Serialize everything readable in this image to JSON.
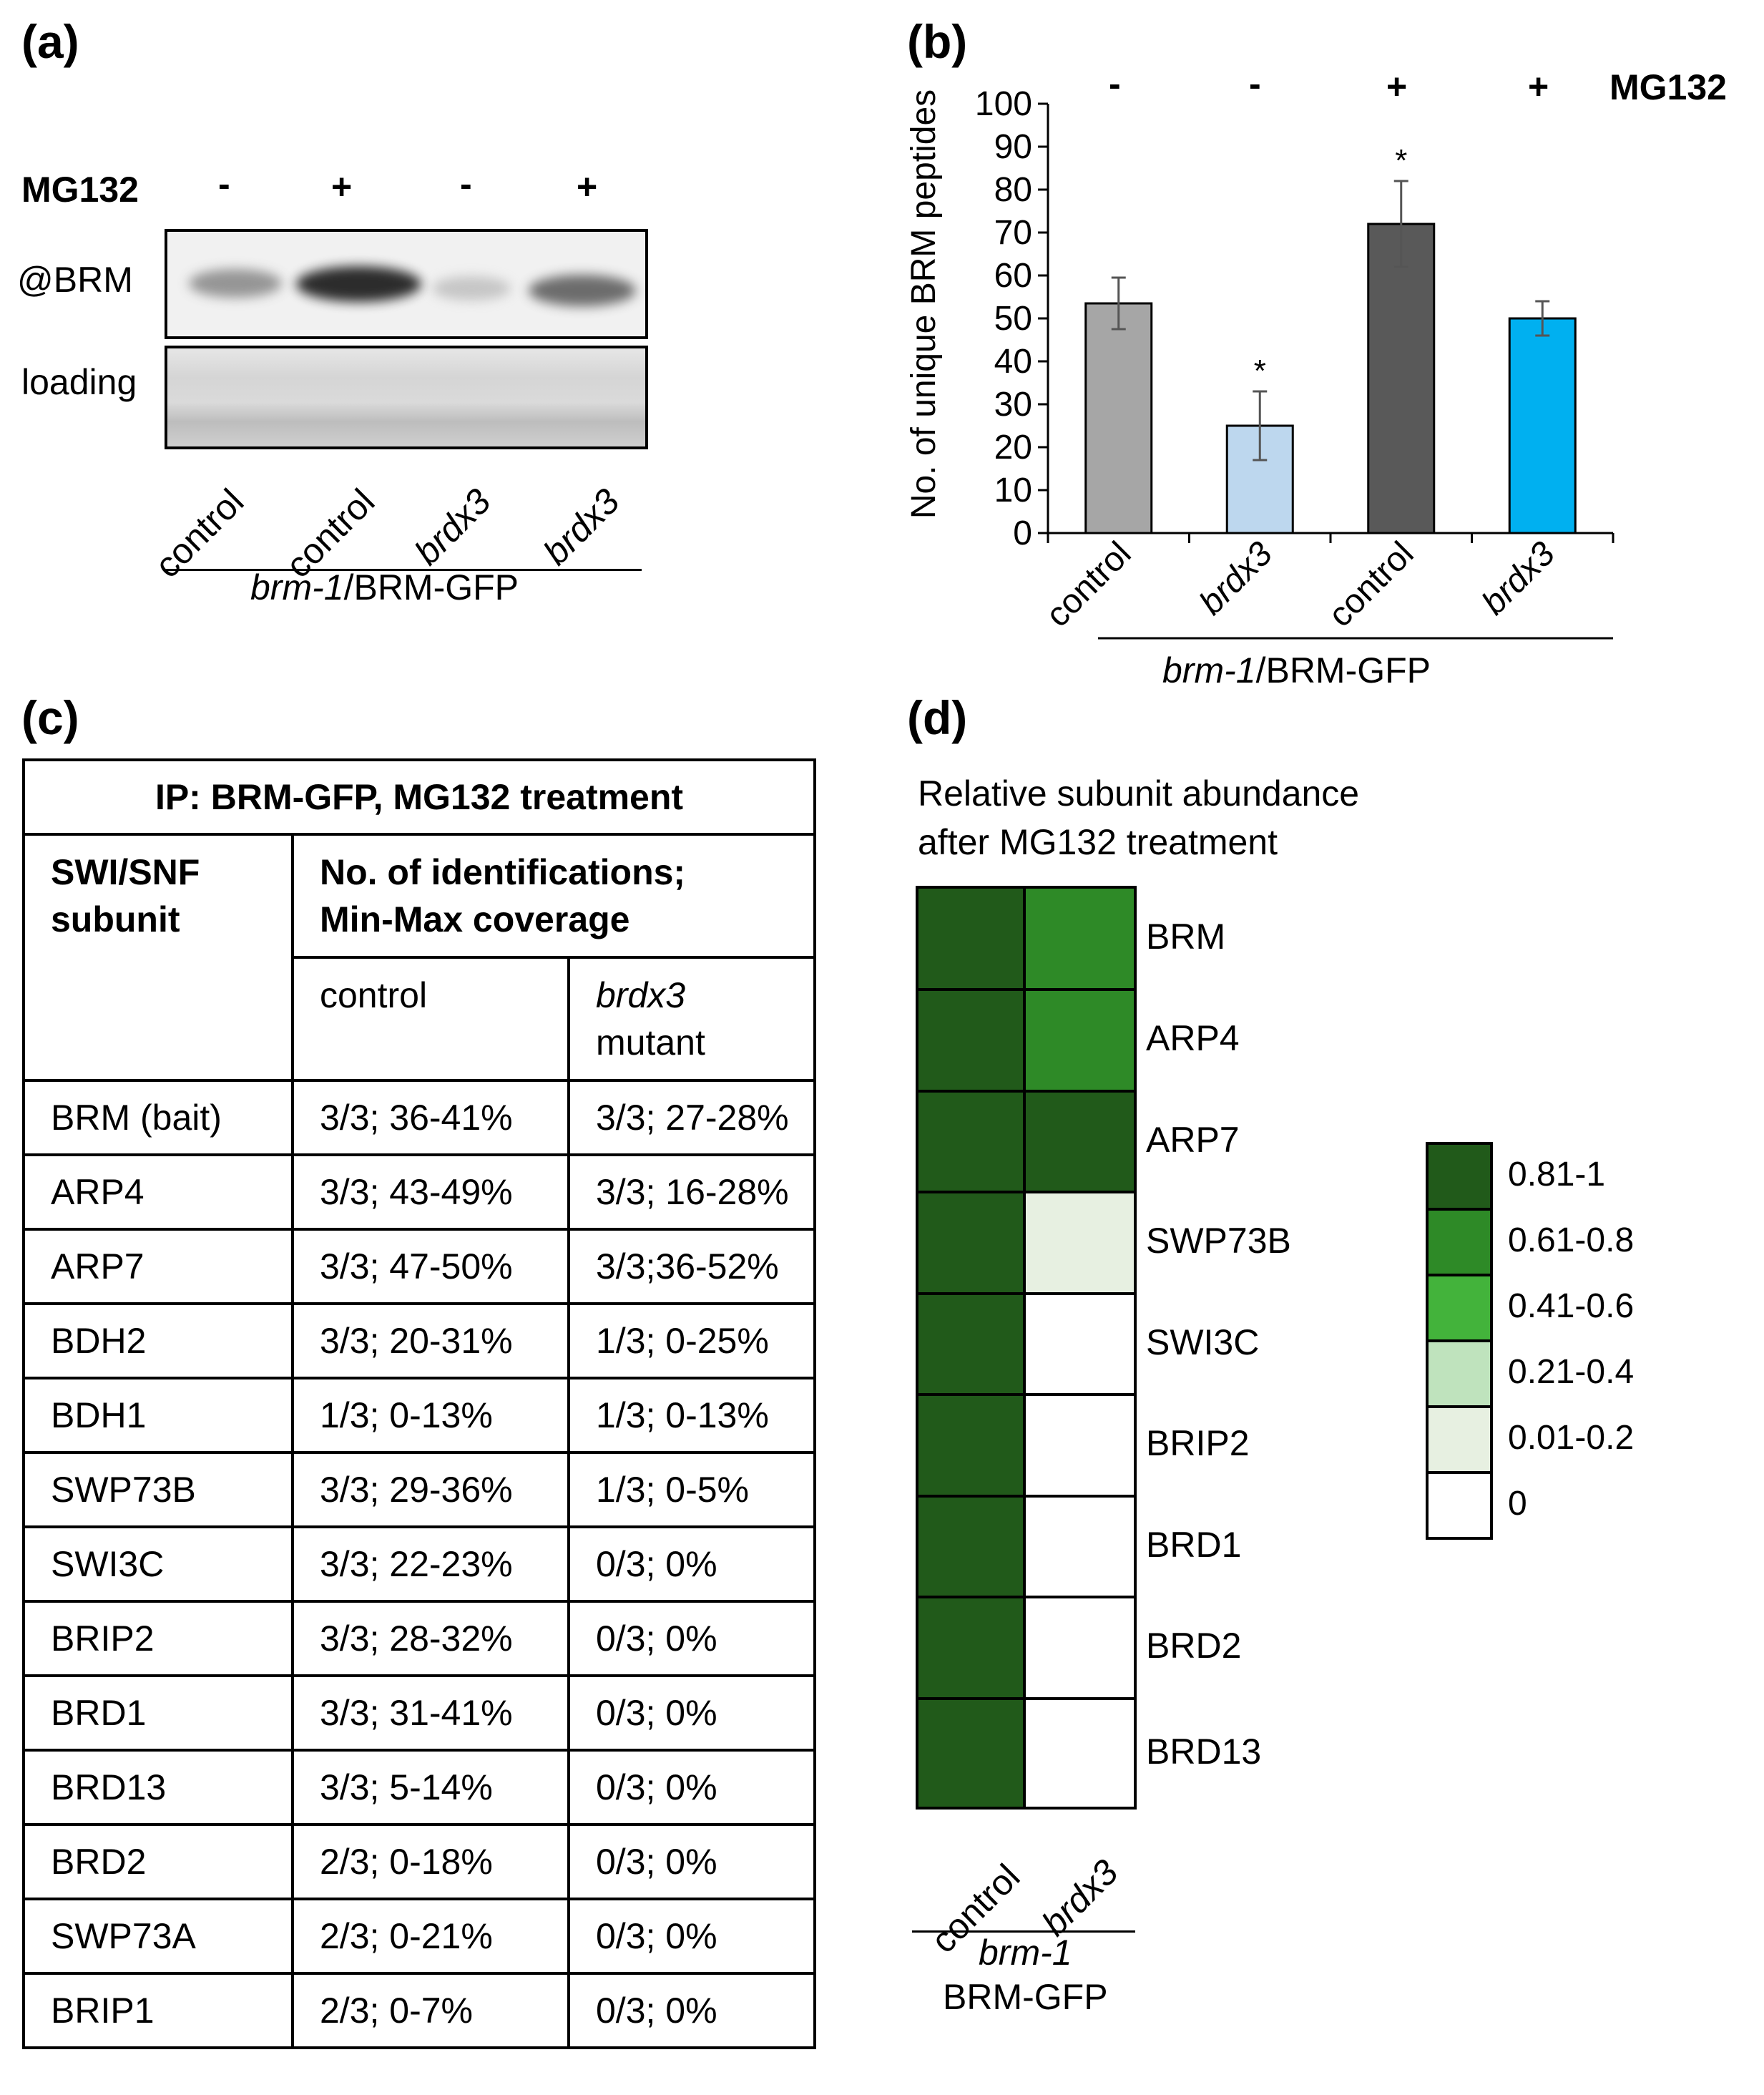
{
  "panel_a": {
    "label": "(a)",
    "treatment_label": "MG132",
    "signs": [
      "-",
      "+",
      "-",
      "+"
    ],
    "row_labels": {
      "brm": "@BRM",
      "loading": "loading"
    },
    "lanes": [
      "control",
      "control",
      "brdx3",
      "brdx3"
    ],
    "genotype_italic": "brm-1",
    "genotype_rest": "/BRM-GFP"
  },
  "panel_b": {
    "label": "(b)",
    "treatment_label": "MG132",
    "signs": [
      "-",
      "-",
      "+",
      "+"
    ],
    "genotype_italic": "brm-1",
    "genotype_rest": "/BRM-GFP",
    "significance": [
      "",
      "*",
      "*",
      ""
    ]
  },
  "chart_data": {
    "type": "bar",
    "title": "",
    "ylabel": "No. of unique BRM peptides",
    "xlabel": "brm-1/BRM-GFP",
    "categories": [
      "control",
      "brdx3",
      "control",
      "brdx3"
    ],
    "values": [
      53.5,
      25,
      72,
      50
    ],
    "errors": [
      6,
      8,
      10,
      4
    ],
    "ylim": [
      0,
      100
    ],
    "yticks": [
      0,
      10,
      20,
      30,
      40,
      50,
      60,
      70,
      80,
      90,
      100
    ],
    "bar_colors": [
      "#a6a6a6",
      "#bdd7ee",
      "#595959",
      "#00b0f0"
    ]
  },
  "panel_c": {
    "label": "(c)",
    "title": "IP: BRM-GFP, MG132 treatment",
    "col1_header": [
      "SWI/SNF",
      "subunit"
    ],
    "col2_header": [
      "No. of identifications;",
      "Min-Max coverage"
    ],
    "sub_control": "control",
    "sub_mutant_italic": "brdx3",
    "sub_mutant_rest": "mutant",
    "rows": [
      {
        "subunit": "BRM (bait)",
        "control": "3/3; 36-41%",
        "mutant": "3/3; 27-28%"
      },
      {
        "subunit": "ARP4",
        "control": "3/3; 43-49%",
        "mutant": "3/3; 16-28%"
      },
      {
        "subunit": "ARP7",
        "control": "3/3; 47-50%",
        "mutant": "3/3;36-52%"
      },
      {
        "subunit": "BDH2",
        "control": "3/3; 20-31%",
        "mutant": "1/3; 0-25%"
      },
      {
        "subunit": "BDH1",
        "control": "1/3; 0-13%",
        "mutant": "1/3; 0-13%"
      },
      {
        "subunit": "SWP73B",
        "control": "3/3; 29-36%",
        "mutant": "1/3; 0-5%"
      },
      {
        "subunit": "SWI3C",
        "control": "3/3; 22-23%",
        "mutant": "0/3; 0%"
      },
      {
        "subunit": "BRIP2",
        "control": "3/3; 28-32%",
        "mutant": "0/3; 0%"
      },
      {
        "subunit": "BRD1",
        "control": "3/3; 31-41%",
        "mutant": "0/3; 0%"
      },
      {
        "subunit": "BRD13",
        "control": "3/3; 5-14%",
        "mutant": "0/3; 0%"
      },
      {
        "subunit": "BRD2",
        "control": "2/3; 0-18%",
        "mutant": "0/3; 0%"
      },
      {
        "subunit": "SWP73A",
        "control": "2/3; 0-21%",
        "mutant": "0/3; 0%"
      },
      {
        "subunit": "BRIP1",
        "control": "2/3; 0-7%",
        "mutant": "0/3; 0%"
      }
    ]
  },
  "panel_d": {
    "label": "(d)",
    "title_line1": "Relative subunit abundance",
    "title_line2": "after MG132 treatment",
    "columns": [
      "control",
      "brdx3"
    ],
    "genotype_italic": "brm-1",
    "genotype_rest": "BRM-GFP",
    "heatmap": {
      "type": "heatmap",
      "rows": [
        "BRM",
        "ARP4",
        "ARP7",
        "SWP73B",
        "SWI3C",
        "BRIP2",
        "BRD1",
        "BRD2",
        "BRD13"
      ],
      "control_bins": [
        "0.81-1",
        "0.81-1",
        "0.81-1",
        "0.81-1",
        "0.81-1",
        "0.81-1",
        "0.81-1",
        "0.81-1",
        "0.81-1"
      ],
      "brdx3_bins": [
        "0.61-0.8",
        "0.61-0.8",
        "0.81-1",
        "0.01-0.2",
        "0",
        "0",
        "0",
        "0",
        "0"
      ]
    },
    "legend": [
      {
        "label": "0.81-1",
        "color": "#215a1a"
      },
      {
        "label": "0.61-0.8",
        "color": "#2e8a27"
      },
      {
        "label": "0.41-0.6",
        "color": "#43b33b"
      },
      {
        "label": "0.21-0.4",
        "color": "#bfe3bd"
      },
      {
        "label": "0.01-0.2",
        "color": "#e7f0e1"
      },
      {
        "label": "0",
        "color": "#ffffff"
      }
    ]
  }
}
